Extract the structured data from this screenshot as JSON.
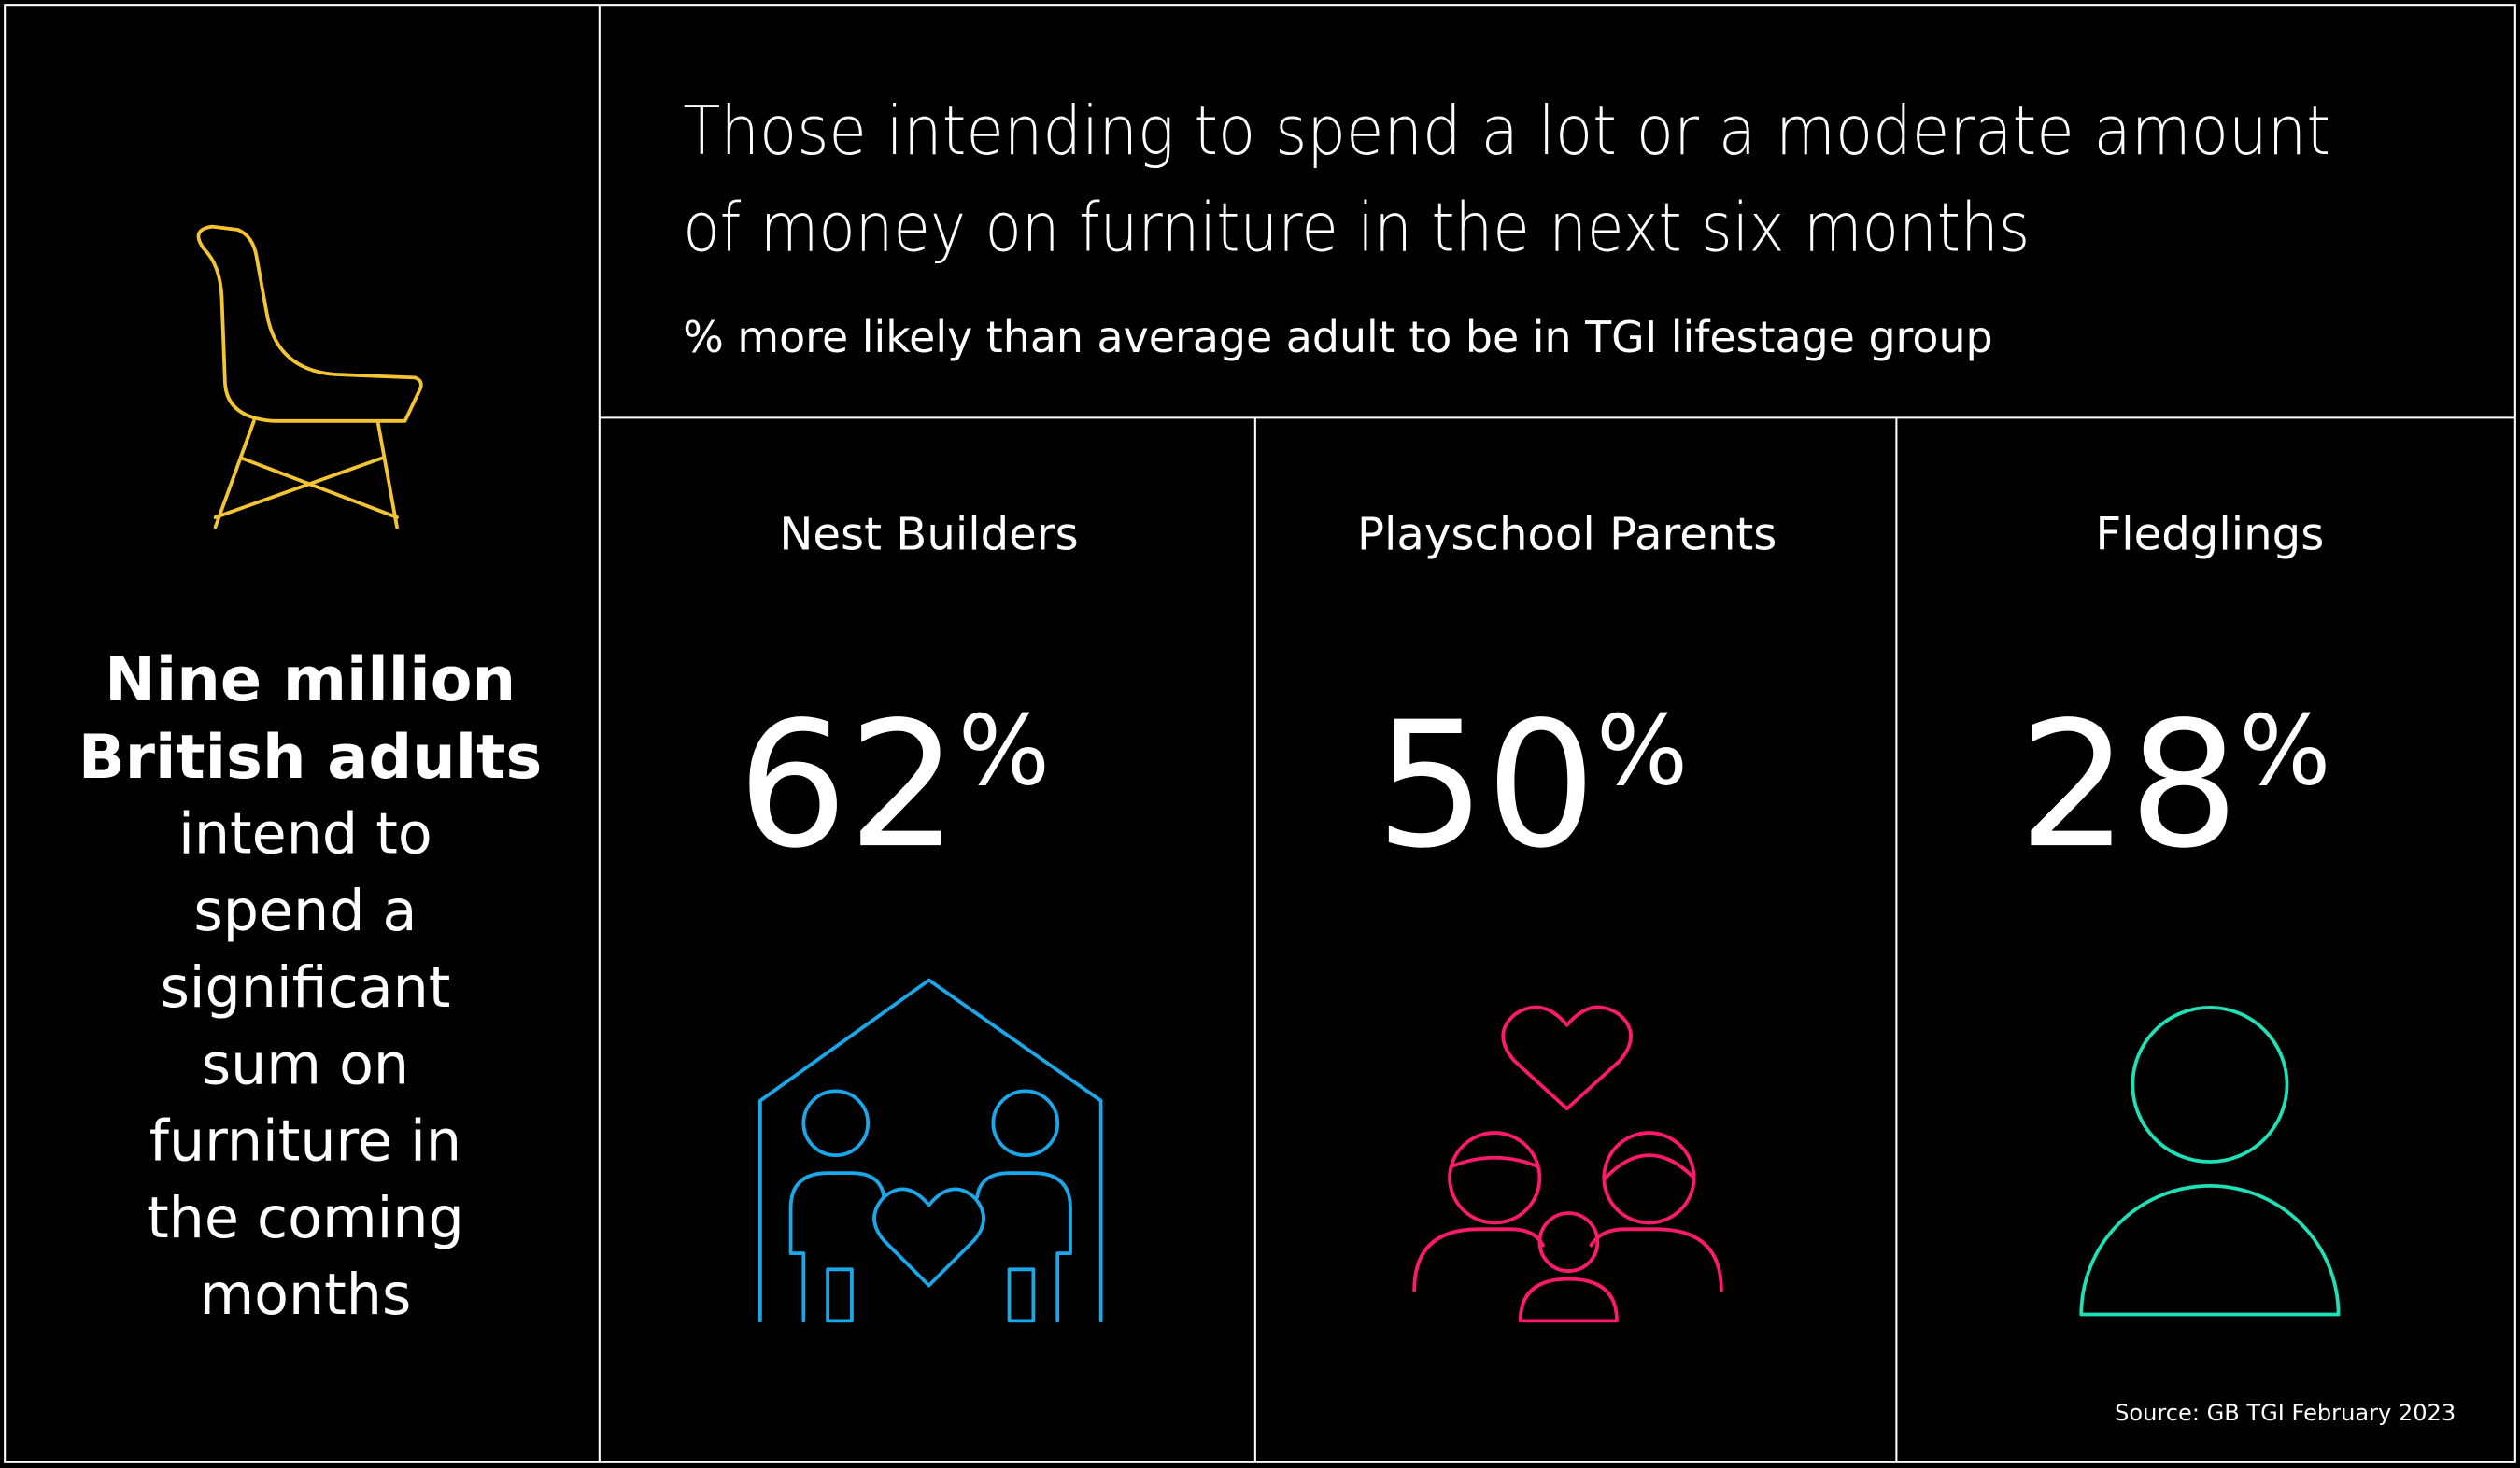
{
  "sidebar": {
    "headline": [
      "Nine million",
      "British adults"
    ],
    "body": [
      "intend to",
      "spend a",
      "significant",
      "sum on",
      "furniture in",
      "the coming",
      "months"
    ]
  },
  "header": {
    "title": [
      "Those intending to spend a lot or a moderate amount",
      "of money on furniture in the next six months"
    ],
    "subtitle": "% more likely than average adult to be in TGI lifestage group"
  },
  "groups": [
    {
      "name": "Nest Builders",
      "value": 62,
      "unit": "%",
      "color": "#1aa8ea"
    },
    {
      "name": "Playschool Parents",
      "value": 50,
      "unit": "%",
      "color": "#ff1a6b"
    },
    {
      "name": "Fledglings",
      "value": 28,
      "unit": "%",
      "color": "#1fe0b6"
    }
  ],
  "source": "Source: GB TGI February 2023"
}
